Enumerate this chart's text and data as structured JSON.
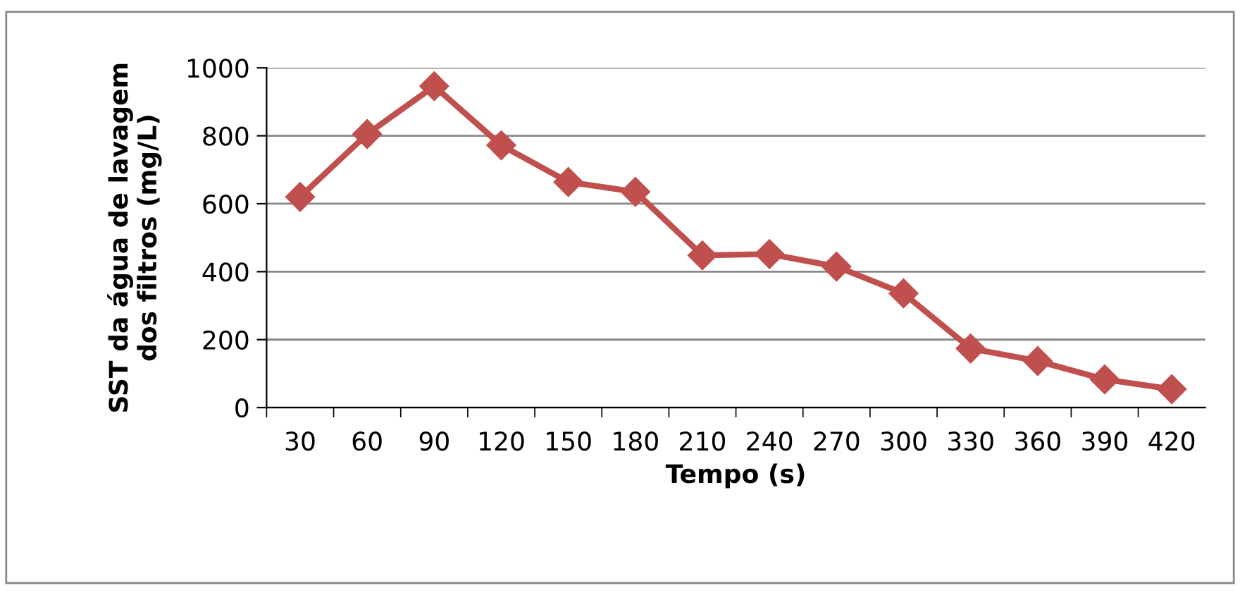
{
  "chart_data": {
    "type": "line",
    "xlabel": "Tempo (s)",
    "ylabel": "SST da água de lavagem\ndos filtros (mg/L)",
    "categories": [
      "30",
      "60",
      "90",
      "120",
      "150",
      "180",
      "210",
      "240",
      "270",
      "300",
      "330",
      "360",
      "390",
      "420"
    ],
    "series": [
      {
        "color": "#c0504d",
        "values": [
          620,
          805,
          946,
          772,
          664,
          635,
          448,
          452,
          415,
          336,
          174,
          137,
          83,
          54
        ]
      }
    ],
    "ylim": [
      0,
      1000
    ],
    "yticks": [
      0,
      200,
      400,
      600,
      800,
      1000
    ],
    "grid": "y",
    "marker": "diamond",
    "line_style": "solid"
  }
}
